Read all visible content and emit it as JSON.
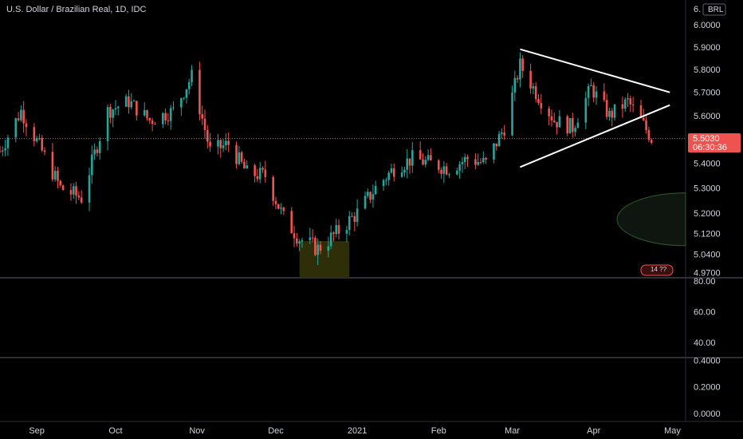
{
  "header": {
    "title": "U.S. Dollar / Brazilian Real, 1D, IDC"
  },
  "price_scale": {
    "top_label": "6.",
    "currency_badge": "BRL"
  },
  "last_price": {
    "value": "5.5030",
    "countdown": "06:30:36"
  },
  "colors": {
    "background": "#000000",
    "up": "#26a69a",
    "down": "#ef5350",
    "text": "#d1d4dc",
    "price_line": "#ef5350",
    "highlight": "#2e2e08",
    "ellipse": "#2f5a2f",
    "trendline": "#ffffff"
  },
  "chart_data": [
    {
      "type": "candlestick",
      "name": "price",
      "y_axis": {
        "ticks": [
          6.0,
          5.9,
          5.8,
          5.7,
          5.6,
          5.4,
          5.3,
          5.2,
          5.12,
          5.04,
          4.97
        ],
        "tick_labels": [
          "6.0000",
          "5.9000",
          "5.8000",
          "5.7000",
          "5.6000",
          "5.4000",
          "5.3000",
          "5.2000",
          "5.1200",
          "5.0400",
          "4.9700"
        ],
        "scale": "log",
        "range": [
          4.95,
          6.1
        ]
      },
      "x_axis": {
        "ticks": [
          "Sep",
          "Oct",
          "Nov",
          "Dec",
          "2021",
          "Feb",
          "Mar",
          "Apr",
          "May"
        ],
        "range": [
          "2020-08-18",
          "2021-05-06"
        ]
      },
      "last_value": 5.503,
      "annotations": [
        {
          "type": "trendline",
          "from": [
            "2021-03-04",
            5.89
          ],
          "to": [
            "2021-04-30",
            5.7
          ]
        },
        {
          "type": "trendline",
          "from": [
            "2021-03-04",
            5.385
          ],
          "to": [
            "2021-04-30",
            5.645
          ]
        },
        {
          "type": "highlight",
          "from": "2020-12-10",
          "to": "2020-12-29"
        },
        {
          "type": "ellipse",
          "center": [
            "2021-05-06",
            5.175
          ]
        }
      ]
    },
    {
      "type": "line",
      "name": "oscillator-1",
      "y_axis": {
        "tick_labels": [
          "80.00",
          "60.00",
          "40.00"
        ],
        "range": [
          30,
          82
        ]
      }
    },
    {
      "type": "line",
      "name": "oscillator-2",
      "y_axis": {
        "tick_labels": [
          "0.4000",
          "0.2000",
          "0.0000"
        ],
        "range": [
          -0.06,
          0.42
        ]
      }
    }
  ],
  "badges": {
    "mini_label": "14 ??"
  }
}
